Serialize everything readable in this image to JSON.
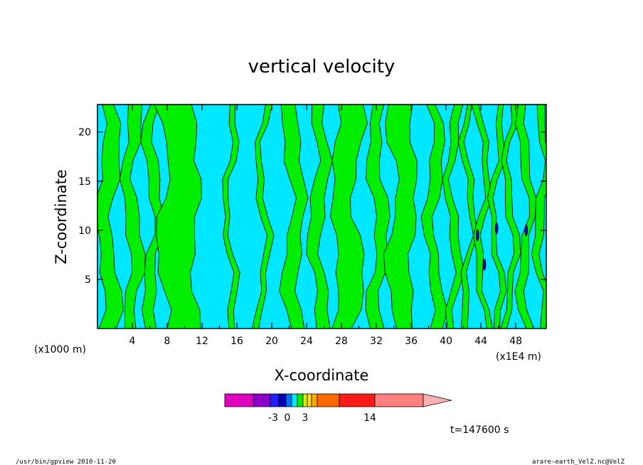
{
  "chart_data": {
    "type": "heatmap",
    "title": "vertical velocity",
    "xlabel": "X-coordinate",
    "ylabel": "Z-coordinate",
    "x_scale_note": "(x1E4 m)",
    "y_scale_note": "(x1000 m)",
    "xlim": [
      0,
      51.5
    ],
    "ylim": [
      0,
      22.8
    ],
    "x_ticks": [
      "4",
      "8",
      "12",
      "16",
      "20",
      "24",
      "28",
      "32",
      "36",
      "40",
      "44",
      "48"
    ],
    "x_tick_values": [
      4,
      8,
      12,
      16,
      20,
      24,
      28,
      32,
      36,
      40,
      44,
      48
    ],
    "y_ticks": [
      "5",
      "10",
      "15",
      "20"
    ],
    "y_tick_values": [
      5,
      10,
      15,
      20
    ],
    "fill_colors": {
      "near_zero_negative": "#00e8ff",
      "near_zero_positive": "#00ee00",
      "contour_line": "#000000",
      "strong_negative": "#0000b0"
    },
    "colorbar": {
      "colors": [
        "#e000c0",
        "#8a00c8",
        "#2020ff",
        "#0000b0",
        "#0070ff",
        "#00e8ff",
        "#00ee00",
        "#d8f000",
        "#ffe000",
        "#ffa800",
        "#ff6a00",
        "#ff1a1a",
        "#ff8080",
        "#ffb0b0"
      ],
      "tick_labels": [
        "-3",
        "0",
        "3",
        "14"
      ],
      "tick_values": [
        -3,
        0,
        3,
        14
      ]
    },
    "time_label": "t=147600 s"
  },
  "footer": {
    "left": "/usr/bin/gpview   2010-11-20",
    "right": "arare-earth_VelZ.nc@VelZ"
  }
}
